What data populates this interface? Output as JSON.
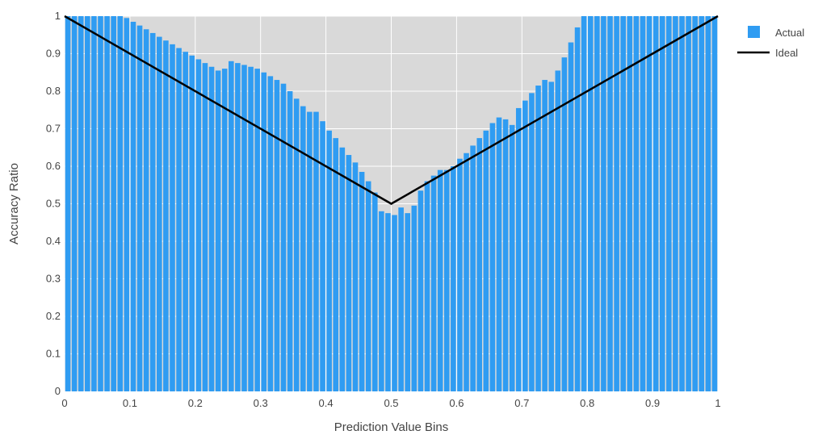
{
  "chart_data": {
    "type": "bar",
    "title": "",
    "xlabel": "Prediction Value Bins",
    "ylabel": "Accuracy Ratio",
    "xlim": [
      0,
      1
    ],
    "ylim": [
      0,
      1
    ],
    "x_ticks": [
      "0",
      "0.1",
      "0.2",
      "0.3",
      "0.4",
      "0.5",
      "0.6",
      "0.7",
      "0.8",
      "0.9",
      "1"
    ],
    "y_ticks": [
      "0",
      "0.1",
      "0.2",
      "0.3",
      "0.4",
      "0.5",
      "0.6",
      "0.7",
      "0.8",
      "0.9",
      "1"
    ],
    "grid": true,
    "legend_position": "top-right",
    "bar_width": 0.01,
    "series": [
      {
        "name": "Actual",
        "kind": "bar",
        "color": "#2f9cf2",
        "x": [
          0.005,
          0.015,
          0.025,
          0.035,
          0.045,
          0.055,
          0.065,
          0.075,
          0.085,
          0.095,
          0.105,
          0.115,
          0.125,
          0.135,
          0.145,
          0.155,
          0.165,
          0.175,
          0.185,
          0.195,
          0.205,
          0.215,
          0.225,
          0.235,
          0.245,
          0.255,
          0.265,
          0.275,
          0.285,
          0.295,
          0.305,
          0.315,
          0.325,
          0.335,
          0.345,
          0.355,
          0.365,
          0.375,
          0.385,
          0.395,
          0.405,
          0.415,
          0.425,
          0.435,
          0.445,
          0.455,
          0.465,
          0.475,
          0.485,
          0.495,
          0.505,
          0.515,
          0.525,
          0.535,
          0.545,
          0.555,
          0.565,
          0.575,
          0.585,
          0.595,
          0.605,
          0.615,
          0.625,
          0.635,
          0.645,
          0.655,
          0.665,
          0.675,
          0.685,
          0.695,
          0.705,
          0.715,
          0.725,
          0.735,
          0.745,
          0.755,
          0.765,
          0.775,
          0.785,
          0.795,
          0.805,
          0.815,
          0.825,
          0.835,
          0.845,
          0.855,
          0.865,
          0.875,
          0.885,
          0.895,
          0.905,
          0.915,
          0.925,
          0.935,
          0.945,
          0.955,
          0.965,
          0.975,
          0.985,
          0.995
        ],
        "values": [
          1.0,
          1.0,
          1.0,
          1.0,
          1.0,
          1.0,
          1.0,
          1.0,
          1.0,
          0.995,
          0.985,
          0.975,
          0.965,
          0.955,
          0.945,
          0.935,
          0.925,
          0.915,
          0.905,
          0.895,
          0.885,
          0.875,
          0.865,
          0.855,
          0.86,
          0.88,
          0.875,
          0.87,
          0.865,
          0.86,
          0.85,
          0.84,
          0.83,
          0.82,
          0.8,
          0.78,
          0.76,
          0.745,
          0.745,
          0.72,
          0.695,
          0.675,
          0.65,
          0.63,
          0.61,
          0.585,
          0.56,
          0.53,
          0.48,
          0.475,
          0.47,
          0.49,
          0.475,
          0.495,
          0.535,
          0.56,
          0.575,
          0.59,
          0.59,
          0.6,
          0.62,
          0.635,
          0.655,
          0.675,
          0.695,
          0.715,
          0.73,
          0.725,
          0.71,
          0.755,
          0.775,
          0.795,
          0.815,
          0.83,
          0.825,
          0.855,
          0.89,
          0.93,
          0.97,
          1.0,
          1.0,
          1.0,
          1.0,
          1.0,
          1.0,
          1.0,
          1.0,
          1.0,
          1.0,
          1.0,
          1.0,
          1.0,
          1.0,
          1.0,
          1.0,
          1.0,
          1.0,
          1.0,
          1.0,
          1.0
        ]
      },
      {
        "name": "Ideal",
        "kind": "line",
        "color": "#000000",
        "x": [
          0,
          0.5,
          1
        ],
        "values": [
          1,
          0.5,
          1
        ]
      }
    ],
    "plot_background": "#d9d9d9",
    "grid_color": "#ffffff"
  }
}
